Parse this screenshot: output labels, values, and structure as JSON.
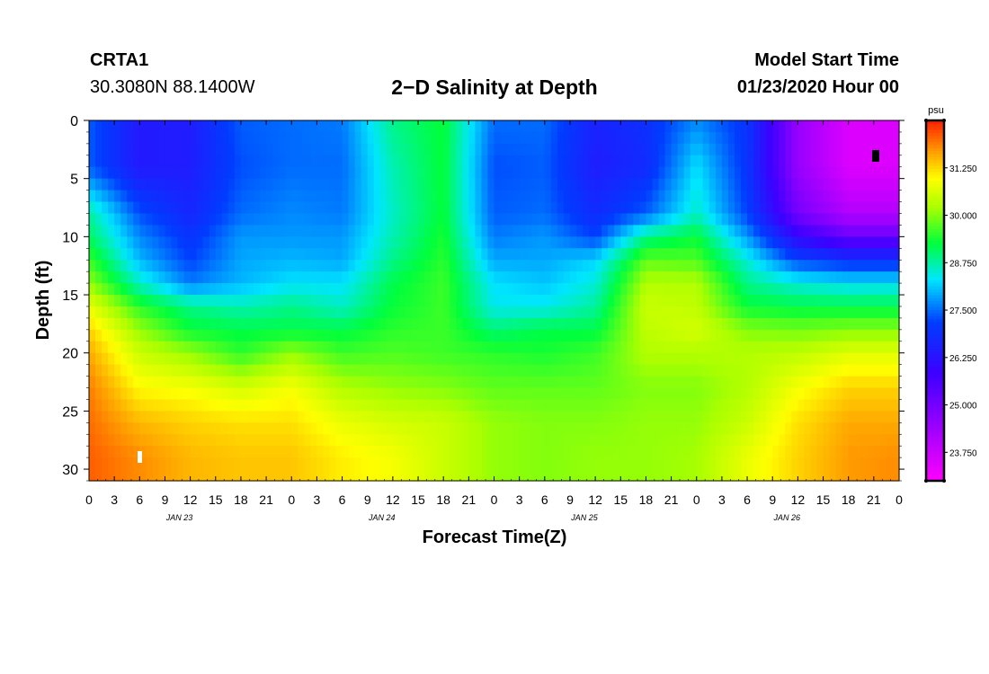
{
  "header": {
    "station_name": "CRTA1",
    "station_coords": "30.3080N 88.1400W",
    "title": "2−D Salinity at Depth",
    "model_label": "Model Start Time",
    "model_time": "01/23/2020 Hour 00"
  },
  "chart_data": {
    "type": "heatmap",
    "title": "2−D Salinity at Depth",
    "xlabel": "Forecast Time(Z)",
    "ylabel": "Depth (ft)",
    "x_tick_labels": [
      "0",
      "3",
      "6",
      "9",
      "12",
      "15",
      "18",
      "21",
      "0",
      "3",
      "6",
      "9",
      "12",
      "15",
      "18",
      "21",
      "0",
      "3",
      "6",
      "9",
      "12",
      "15",
      "18",
      "21",
      "0",
      "3",
      "6",
      "9",
      "12",
      "15",
      "18",
      "21",
      "0"
    ],
    "date_labels": [
      {
        "label": "JAN 23",
        "hour": 9
      },
      {
        "label": "JAN 24",
        "hour": 33
      },
      {
        "label": "JAN 25",
        "hour": 57
      },
      {
        "label": "JAN 26",
        "hour": 81
      }
    ],
    "xlim": [
      0,
      96
    ],
    "ylim": [
      0,
      31
    ],
    "y_ticks": [
      0,
      5,
      10,
      15,
      20,
      25,
      30
    ],
    "y_tick_labels": [
      "0",
      "5",
      "10",
      "15",
      "20",
      "25",
      "30"
    ],
    "colorbar": {
      "unit": "psu",
      "range": [
        23.0,
        32.5
      ],
      "tick_values": [
        31.25,
        30.0,
        28.75,
        27.5,
        26.25,
        25.0,
        23.75
      ],
      "tick_labels": [
        "31.250",
        "30.000",
        "28.750",
        "27.500",
        "26.250",
        "25.000",
        "23.750"
      ]
    },
    "grid": false,
    "hours": [
      0,
      6,
      12,
      18,
      24,
      30,
      36,
      42,
      48,
      54,
      60,
      66,
      72,
      78,
      84,
      90,
      96
    ],
    "depths_ft": [
      0,
      4,
      8,
      10,
      12,
      14,
      16,
      18,
      20,
      23,
      26,
      29,
      31
    ],
    "salinity_psu": [
      [
        27.4,
        26.4,
        26.5,
        27.4,
        27.5,
        27.6,
        28.9,
        29.3,
        27.5,
        27.5,
        26.6,
        26.9,
        27.7,
        27.0,
        24.5,
        23.5,
        23.5
      ],
      [
        27.4,
        26.4,
        26.5,
        27.3,
        27.5,
        27.5,
        28.7,
        29.3,
        27.3,
        27.4,
        26.5,
        26.8,
        28.3,
        27.0,
        24.5,
        23.5,
        23.5
      ],
      [
        28.8,
        27.3,
        26.7,
        27.5,
        27.7,
        27.6,
        28.6,
        29.3,
        27.4,
        27.5,
        26.8,
        27.4,
        28.6,
        27.2,
        25.0,
        24.1,
        24.1
      ],
      [
        29.1,
        27.7,
        27.0,
        27.8,
        27.8,
        27.8,
        28.7,
        29.4,
        27.6,
        27.8,
        27.2,
        28.9,
        29.3,
        27.8,
        26.0,
        25.2,
        25.2
      ],
      [
        29.6,
        28.0,
        27.2,
        27.9,
        28.0,
        27.9,
        28.9,
        29.5,
        27.9,
        27.9,
        28.2,
        29.8,
        29.7,
        28.5,
        27.2,
        26.9,
        26.9
      ],
      [
        30.1,
        28.6,
        27.6,
        28.0,
        28.3,
        28.3,
        29.2,
        29.6,
        28.3,
        28.1,
        28.5,
        30.3,
        30.3,
        28.9,
        28.5,
        28.3,
        28.3
      ],
      [
        30.8,
        29.5,
        28.9,
        28.7,
        28.9,
        28.6,
        29.3,
        29.6,
        28.4,
        28.4,
        28.8,
        30.5,
        30.4,
        29.3,
        29.2,
        29.2,
        29.2
      ],
      [
        31.3,
        30.1,
        29.3,
        29.2,
        29.2,
        29.2,
        29.5,
        29.6,
        29.0,
        29.2,
        29.2,
        30.4,
        30.6,
        30.0,
        29.9,
        30.0,
        30.0
      ],
      [
        31.6,
        30.5,
        30.1,
        29.5,
        30.1,
        29.6,
        29.7,
        29.6,
        29.5,
        29.4,
        29.6,
        30.3,
        30.3,
        30.3,
        30.4,
        30.7,
        30.7
      ],
      [
        31.9,
        31.0,
        30.9,
        30.6,
        30.9,
        30.3,
        30.1,
        30.0,
        29.8,
        29.8,
        29.8,
        30.0,
        30.0,
        30.3,
        30.9,
        31.3,
        31.3
      ],
      [
        32.0,
        31.5,
        31.3,
        31.2,
        31.2,
        30.8,
        30.6,
        30.5,
        30.1,
        30.0,
        30.0,
        30.1,
        30.1,
        30.5,
        31.2,
        31.6,
        31.6
      ],
      [
        32.1,
        31.8,
        31.5,
        31.4,
        31.4,
        31.1,
        30.9,
        30.5,
        30.1,
        30.0,
        30.1,
        30.1,
        30.2,
        30.8,
        31.3,
        31.7,
        31.8
      ],
      [
        32.1,
        31.8,
        31.5,
        31.4,
        31.4,
        31.1,
        30.9,
        30.5,
        30.1,
        30.0,
        30.1,
        30.1,
        30.2,
        30.8,
        31.3,
        31.7,
        31.8
      ]
    ]
  }
}
